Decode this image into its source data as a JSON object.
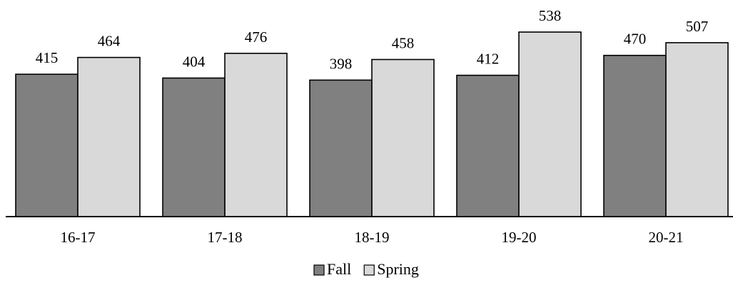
{
  "chart_data": {
    "type": "bar",
    "title": "",
    "xlabel": "",
    "ylabel": "",
    "categories": [
      "16-17",
      "17-18",
      "18-19",
      "19-20",
      "20-21"
    ],
    "series": [
      {
        "name": "Fall",
        "values": [
          415,
          404,
          398,
          412,
          470
        ],
        "color": "#808080"
      },
      {
        "name": "Spring",
        "values": [
          464,
          476,
          458,
          538,
          507
        ],
        "color": "#d9d9d9"
      }
    ],
    "ylim": [
      0,
      538
    ],
    "grid": false,
    "legend_position": "bottom-center",
    "data_labels": true
  }
}
